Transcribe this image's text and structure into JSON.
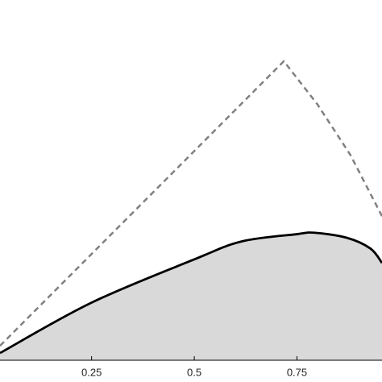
{
  "chart_data": {
    "type": "line",
    "xlim": [
      0.027,
      0.957
    ],
    "ylim": [
      0,
      1
    ],
    "xticks": [
      0.25,
      0.5,
      0.75
    ],
    "series": [
      {
        "color": "#808080",
        "dash": true,
        "x": [
          0.027,
          0.718,
          0.8,
          0.88,
          0.957
        ],
        "values": [
          0.04,
          0.83,
          0.71,
          0.57,
          0.4
        ]
      },
      {
        "color": "#000000",
        "fill": "#d9d9d9",
        "x": [
          0.027,
          0.25,
          0.5,
          0.616,
          0.75,
          0.792,
          0.871,
          0.929,
          0.957
        ],
        "values": [
          0.02,
          0.16,
          0.28,
          0.33,
          0.35,
          0.354,
          0.34,
          0.31,
          0.27
        ]
      }
    ]
  }
}
